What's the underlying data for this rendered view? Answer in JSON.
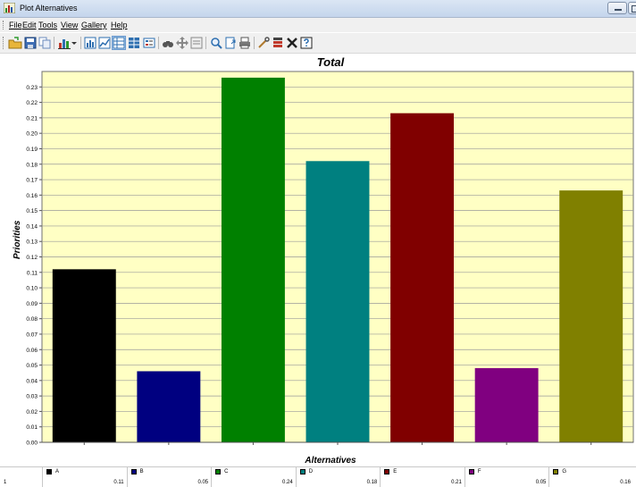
{
  "window": {
    "title": "Plot Alternatives"
  },
  "menu": [
    {
      "label": "File",
      "name": "menu-file"
    },
    {
      "label": "Edit",
      "name": "menu-edit"
    },
    {
      "label": "Tools",
      "name": "menu-tools"
    },
    {
      "label": "View",
      "name": "menu-view"
    },
    {
      "label": "Gallery",
      "name": "menu-gallery"
    },
    {
      "label": "Help",
      "name": "menu-help"
    }
  ],
  "toolbar": [
    {
      "icon": "open-folder-icon",
      "color": "#e3a524"
    },
    {
      "icon": "save-icon",
      "color": "#3f6fb6"
    },
    {
      "icon": "copy-icon",
      "color": "#6b8bbd"
    },
    {
      "icon": "gallery-chart-icon",
      "color": "#c0392b"
    },
    {
      "icon": "dropdown-arrow-icon",
      "color": "#333333"
    },
    {
      "icon": "chart-view-icon",
      "color": "#2e6fb0"
    },
    {
      "icon": "series-view-icon",
      "color": "#2e6fb0"
    },
    {
      "icon": "data-grid-icon",
      "color": "#2e6fb0"
    },
    {
      "icon": "table-icon",
      "color": "#2e6fb0"
    },
    {
      "icon": "legend-icon",
      "color": "#2e6fb0"
    },
    {
      "icon": "binoculars-icon",
      "color": "#555555"
    },
    {
      "icon": "move-icon",
      "color": "#888888"
    },
    {
      "icon": "properties-icon",
      "color": "#888888"
    },
    {
      "icon": "zoom-icon",
      "color": "#2e6fb0"
    },
    {
      "icon": "export-icon",
      "color": "#2e6fb0"
    },
    {
      "icon": "print-icon",
      "color": "#555555"
    },
    {
      "icon": "tools-icon",
      "color": "#b07a2e"
    },
    {
      "icon": "palette-icon",
      "color": "#c0392b"
    },
    {
      "icon": "close-icon",
      "color": "#222222"
    },
    {
      "icon": "help-icon",
      "color": "#2e6fb0"
    }
  ],
  "colors": {
    "plot_bg": "#ffffc4",
    "grid": "#9a9a9a",
    "titlebar": "#c4d5ec"
  },
  "chart_data": {
    "type": "bar",
    "title": "Total",
    "xlabel": "Alternatives",
    "ylabel": "Priorities",
    "ylim": [
      0,
      0.24
    ],
    "yticks": [
      "0.00",
      "0.01",
      "0.02",
      "0.03",
      "0.04",
      "0.05",
      "0.06",
      "0.07",
      "0.08",
      "0.09",
      "0.10",
      "0.11",
      "0.12",
      "0.13",
      "0.14",
      "0.15",
      "0.16",
      "0.17",
      "0.18",
      "0.19",
      "0.20",
      "0.21",
      "0.22",
      "0.23"
    ],
    "grid": true,
    "categories": [
      "A",
      "B",
      "C",
      "D",
      "E",
      "F",
      "G"
    ],
    "values": [
      0.112,
      0.046,
      0.236,
      0.182,
      0.213,
      0.048,
      0.163
    ],
    "colors": [
      "#000000",
      "#000080",
      "#008000",
      "#008080",
      "#800000",
      "#800080",
      "#808000"
    ]
  },
  "data_table": {
    "row_label": "1",
    "values": [
      "0.11",
      "0.05",
      "0.24",
      "0.18",
      "0.21",
      "0.05",
      "0.16"
    ]
  }
}
